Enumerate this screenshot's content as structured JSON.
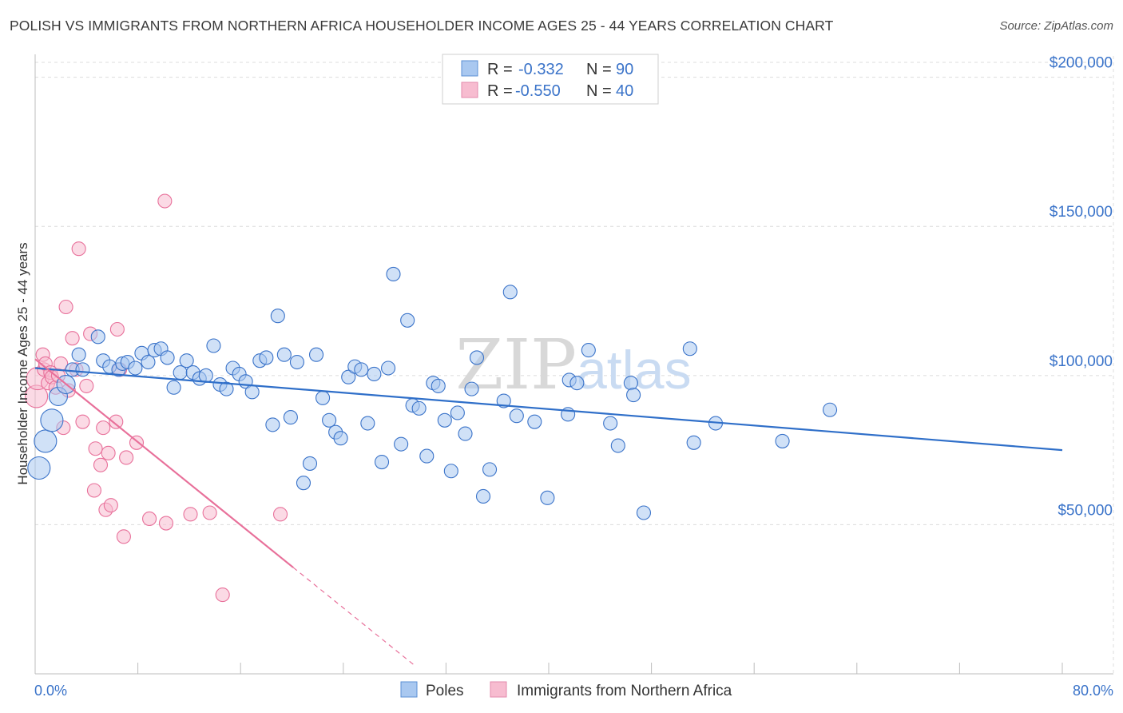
{
  "title": "POLISH VS IMMIGRANTS FROM NORTHERN AFRICA HOUSEHOLDER INCOME AGES 25 - 44 YEARS CORRELATION CHART",
  "source": "Source: ZipAtlas.com",
  "watermark": {
    "part1": "ZIP",
    "part2": "atlas"
  },
  "colors": {
    "blue": "#3a73c9",
    "blue_fill": "#a9c8f0",
    "blue_line": "#2f6fc9",
    "pink": "#e8709a",
    "pink_fill": "#f7bcd0",
    "grid": "#dcdcdc"
  },
  "legend": {
    "rows": [
      {
        "r_label": "R =",
        "r_value": "-0.332",
        "n_label": "N =",
        "n_value": "90"
      },
      {
        "r_label": "R =",
        "r_value": "-0.550",
        "n_label": "N =",
        "n_value": "40"
      }
    ]
  },
  "chart_data": {
    "type": "scatter",
    "title": "POLISH VS IMMIGRANTS FROM NORTHERN AFRICA HOUSEHOLDER INCOME AGES 25 - 44 YEARS CORRELATION CHART",
    "xlabel": "",
    "ylabel": "Householder Income Ages 25 - 44 years",
    "xlim": [
      0,
      80
    ],
    "ylim": [
      0,
      205000
    ],
    "x_tick_labels": [
      "0.0%",
      "80.0%"
    ],
    "y_ticks": [
      {
        "value": 50000,
        "label": "$50,000"
      },
      {
        "value": 100000,
        "label": "$100,000"
      },
      {
        "value": 150000,
        "label": "$150,000"
      },
      {
        "value": 200000,
        "label": "$200,000"
      }
    ],
    "series": [
      {
        "name": "Poles",
        "color": "blue",
        "r": -0.332,
        "n": 90,
        "trend": {
          "x0": 0,
          "y0": 102500,
          "x1": 80,
          "y1": 75000,
          "dash_from": null
        },
        "points": [
          {
            "x": 0.3,
            "y": 69000,
            "s": 3
          },
          {
            "x": 0.8,
            "y": 78000,
            "s": 3
          },
          {
            "x": 1.3,
            "y": 85000,
            "s": 3
          },
          {
            "x": 1.8,
            "y": 93000,
            "s": 2
          },
          {
            "x": 2.4,
            "y": 97000,
            "s": 2
          },
          {
            "x": 2.9,
            "y": 102000,
            "s": 1
          },
          {
            "x": 3.4,
            "y": 107000,
            "s": 1
          },
          {
            "x": 3.7,
            "y": 102000,
            "s": 1
          },
          {
            "x": 4.9,
            "y": 113000,
            "s": 1
          },
          {
            "x": 5.3,
            "y": 105000,
            "s": 1
          },
          {
            "x": 5.8,
            "y": 103000,
            "s": 1
          },
          {
            "x": 6.5,
            "y": 102000,
            "s": 1
          },
          {
            "x": 6.8,
            "y": 104000,
            "s": 1
          },
          {
            "x": 7.2,
            "y": 104500,
            "s": 1
          },
          {
            "x": 7.8,
            "y": 102500,
            "s": 1
          },
          {
            "x": 8.3,
            "y": 107500,
            "s": 1
          },
          {
            "x": 8.8,
            "y": 104500,
            "s": 1
          },
          {
            "x": 9.3,
            "y": 108500,
            "s": 1
          },
          {
            "x": 9.8,
            "y": 109000,
            "s": 1
          },
          {
            "x": 10.3,
            "y": 106000,
            "s": 1
          },
          {
            "x": 10.8,
            "y": 96000,
            "s": 1
          },
          {
            "x": 11.3,
            "y": 101000,
            "s": 1
          },
          {
            "x": 11.8,
            "y": 105000,
            "s": 1
          },
          {
            "x": 12.3,
            "y": 101000,
            "s": 1
          },
          {
            "x": 12.8,
            "y": 99000,
            "s": 1
          },
          {
            "x": 13.3,
            "y": 100000,
            "s": 1
          },
          {
            "x": 13.9,
            "y": 110000,
            "s": 1
          },
          {
            "x": 14.4,
            "y": 97000,
            "s": 1
          },
          {
            "x": 14.9,
            "y": 95500,
            "s": 1
          },
          {
            "x": 15.4,
            "y": 102500,
            "s": 1
          },
          {
            "x": 15.9,
            "y": 100500,
            "s": 1
          },
          {
            "x": 16.4,
            "y": 98000,
            "s": 1
          },
          {
            "x": 16.9,
            "y": 94500,
            "s": 1
          },
          {
            "x": 17.5,
            "y": 105000,
            "s": 1
          },
          {
            "x": 18.0,
            "y": 106000,
            "s": 1
          },
          {
            "x": 18.5,
            "y": 83500,
            "s": 1
          },
          {
            "x": 18.9,
            "y": 120000,
            "s": 1
          },
          {
            "x": 19.4,
            "y": 107000,
            "s": 1
          },
          {
            "x": 19.9,
            "y": 86000,
            "s": 1
          },
          {
            "x": 20.4,
            "y": 104500,
            "s": 1
          },
          {
            "x": 20.9,
            "y": 64000,
            "s": 1
          },
          {
            "x": 21.4,
            "y": 70500,
            "s": 1
          },
          {
            "x": 21.9,
            "y": 107000,
            "s": 1
          },
          {
            "x": 22.4,
            "y": 92500,
            "s": 1
          },
          {
            "x": 22.9,
            "y": 85000,
            "s": 1
          },
          {
            "x": 23.4,
            "y": 81000,
            "s": 1
          },
          {
            "x": 23.8,
            "y": 79000,
            "s": 1
          },
          {
            "x": 24.4,
            "y": 99500,
            "s": 1
          },
          {
            "x": 24.9,
            "y": 103000,
            "s": 1
          },
          {
            "x": 25.4,
            "y": 102000,
            "s": 1
          },
          {
            "x": 25.9,
            "y": 84000,
            "s": 1
          },
          {
            "x": 26.4,
            "y": 100500,
            "s": 1
          },
          {
            "x": 27.0,
            "y": 71000,
            "s": 1
          },
          {
            "x": 27.5,
            "y": 102500,
            "s": 1
          },
          {
            "x": 27.9,
            "y": 134000,
            "s": 1
          },
          {
            "x": 28.5,
            "y": 77000,
            "s": 1
          },
          {
            "x": 29.0,
            "y": 118500,
            "s": 1
          },
          {
            "x": 29.4,
            "y": 90000,
            "s": 1
          },
          {
            "x": 29.9,
            "y": 89000,
            "s": 1
          },
          {
            "x": 30.5,
            "y": 73000,
            "s": 1
          },
          {
            "x": 31.0,
            "y": 97500,
            "s": 1
          },
          {
            "x": 31.4,
            "y": 96500,
            "s": 1
          },
          {
            "x": 31.9,
            "y": 85000,
            "s": 1
          },
          {
            "x": 32.4,
            "y": 68000,
            "s": 1
          },
          {
            "x": 32.9,
            "y": 87500,
            "s": 1
          },
          {
            "x": 33.5,
            "y": 80500,
            "s": 1
          },
          {
            "x": 34.0,
            "y": 95500,
            "s": 1
          },
          {
            "x": 34.4,
            "y": 106000,
            "s": 1
          },
          {
            "x": 34.9,
            "y": 59500,
            "s": 1
          },
          {
            "x": 35.4,
            "y": 68500,
            "s": 1
          },
          {
            "x": 36.5,
            "y": 91500,
            "s": 1
          },
          {
            "x": 37.0,
            "y": 128000,
            "s": 1
          },
          {
            "x": 37.5,
            "y": 86500,
            "s": 1
          },
          {
            "x": 38.9,
            "y": 84500,
            "s": 1
          },
          {
            "x": 39.9,
            "y": 59000,
            "s": 1
          },
          {
            "x": 41.5,
            "y": 87000,
            "s": 1
          },
          {
            "x": 41.6,
            "y": 98500,
            "s": 1
          },
          {
            "x": 42.2,
            "y": 97500,
            "s": 1
          },
          {
            "x": 43.1,
            "y": 108500,
            "s": 1
          },
          {
            "x": 44.8,
            "y": 84000,
            "s": 1
          },
          {
            "x": 45.4,
            "y": 76500,
            "s": 1
          },
          {
            "x": 46.4,
            "y": 97500,
            "s": 1
          },
          {
            "x": 46.6,
            "y": 93500,
            "s": 1
          },
          {
            "x": 47.4,
            "y": 54000,
            "s": 1
          },
          {
            "x": 51.0,
            "y": 109000,
            "s": 1
          },
          {
            "x": 51.3,
            "y": 77500,
            "s": 1
          },
          {
            "x": 53.0,
            "y": 84000,
            "s": 1
          },
          {
            "x": 58.2,
            "y": 78000,
            "s": 1
          },
          {
            "x": 61.9,
            "y": 88500,
            "s": 1
          }
        ]
      },
      {
        "name": "Immigrants from Northern Africa",
        "color": "pink",
        "r": -0.55,
        "n": 40,
        "trend": {
          "x0": 0,
          "y0": 105500,
          "x1": 29.5,
          "y1": 3000,
          "dash_from": 20.1
        },
        "points": [
          {
            "x": 0.1,
            "y": 93000,
            "s": 3
          },
          {
            "x": 0.2,
            "y": 99000,
            "s": 3
          },
          {
            "x": 0.6,
            "y": 107000,
            "s": 1
          },
          {
            "x": 0.7,
            "y": 102000,
            "s": 1
          },
          {
            "x": 0.8,
            "y": 104000,
            "s": 1
          },
          {
            "x": 1.0,
            "y": 97500,
            "s": 1
          },
          {
            "x": 1.2,
            "y": 101000,
            "s": 1
          },
          {
            "x": 1.3,
            "y": 99500,
            "s": 1
          },
          {
            "x": 1.6,
            "y": 96000,
            "s": 1
          },
          {
            "x": 1.8,
            "y": 100000,
            "s": 1
          },
          {
            "x": 2.0,
            "y": 104000,
            "s": 1
          },
          {
            "x": 2.2,
            "y": 82500,
            "s": 1
          },
          {
            "x": 2.4,
            "y": 123000,
            "s": 1
          },
          {
            "x": 2.6,
            "y": 95000,
            "s": 1
          },
          {
            "x": 2.9,
            "y": 112500,
            "s": 1
          },
          {
            "x": 3.2,
            "y": 102000,
            "s": 1
          },
          {
            "x": 3.4,
            "y": 142500,
            "s": 1
          },
          {
            "x": 3.7,
            "y": 84500,
            "s": 1
          },
          {
            "x": 4.0,
            "y": 96500,
            "s": 1
          },
          {
            "x": 4.3,
            "y": 114000,
            "s": 1
          },
          {
            "x": 4.6,
            "y": 61500,
            "s": 1
          },
          {
            "x": 4.7,
            "y": 75500,
            "s": 1
          },
          {
            "x": 5.1,
            "y": 70000,
            "s": 1
          },
          {
            "x": 5.3,
            "y": 82500,
            "s": 1
          },
          {
            "x": 5.5,
            "y": 55000,
            "s": 1
          },
          {
            "x": 5.7,
            "y": 74000,
            "s": 1
          },
          {
            "x": 5.9,
            "y": 56500,
            "s": 1
          },
          {
            "x": 6.3,
            "y": 84500,
            "s": 1
          },
          {
            "x": 6.4,
            "y": 115500,
            "s": 1
          },
          {
            "x": 6.6,
            "y": 102000,
            "s": 1
          },
          {
            "x": 6.9,
            "y": 46000,
            "s": 1
          },
          {
            "x": 7.1,
            "y": 72500,
            "s": 1
          },
          {
            "x": 7.9,
            "y": 77500,
            "s": 1
          },
          {
            "x": 8.9,
            "y": 52000,
            "s": 1
          },
          {
            "x": 10.2,
            "y": 50500,
            "s": 1
          },
          {
            "x": 10.1,
            "y": 158500,
            "s": 1
          },
          {
            "x": 12.1,
            "y": 53500,
            "s": 1
          },
          {
            "x": 13.6,
            "y": 54000,
            "s": 1
          },
          {
            "x": 14.6,
            "y": 26500,
            "s": 1
          },
          {
            "x": 19.1,
            "y": 53500,
            "s": 1
          }
        ]
      }
    ]
  }
}
